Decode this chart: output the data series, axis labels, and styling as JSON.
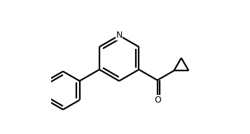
{
  "background_color": "#ffffff",
  "line_color": "#000000",
  "line_width": 1.6,
  "figsize": [
    3.57,
    1.92
  ],
  "dpi": 100,
  "N_label": "N",
  "O_label": "O",
  "N_fontsize": 9,
  "O_fontsize": 9,
  "xlim": [
    0.0,
    1.0
  ],
  "ylim": [
    0.05,
    0.95
  ]
}
